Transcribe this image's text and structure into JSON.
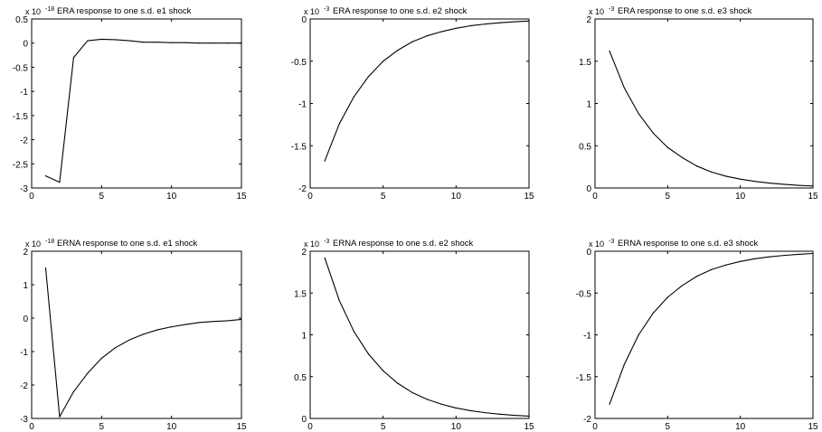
{
  "figure": {
    "background": "#ffffff",
    "line_color": "#000000"
  },
  "chart_data": [
    {
      "type": "line",
      "title": "ERA response to one  s.d. e1 shock",
      "scale_base": "x 10",
      "scale_exponent": "-18",
      "xlim": [
        0,
        15
      ],
      "ylim": [
        -3,
        0.5
      ],
      "xticks": [
        0,
        5,
        10,
        15
      ],
      "yticks": [
        -3,
        -2.5,
        -2,
        -1.5,
        -1,
        -0.5,
        0,
        0.5
      ],
      "x": [
        1,
        2,
        3,
        4,
        5,
        6,
        7,
        8,
        9,
        10,
        11,
        12,
        13,
        14,
        15
      ],
      "series": [
        {
          "values": [
            -2.75,
            -2.88,
            -0.3,
            0.05,
            0.08,
            0.07,
            0.05,
            0.02,
            0.02,
            0.01,
            0.01,
            0.0,
            0.0,
            0.0,
            0.0
          ]
        }
      ]
    },
    {
      "type": "line",
      "title": "ERA response to one  s.d. e2 shock",
      "scale_base": "x 10",
      "scale_exponent": "-3",
      "xlim": [
        0,
        15
      ],
      "ylim": [
        -2,
        0
      ],
      "xticks": [
        0,
        5,
        10,
        15
      ],
      "yticks": [
        -2,
        -1.5,
        -1,
        -0.5,
        0
      ],
      "x": [
        1,
        2,
        3,
        4,
        5,
        6,
        7,
        8,
        9,
        10,
        11,
        12,
        13,
        14,
        15
      ],
      "series": [
        {
          "values": [
            -1.68,
            -1.24,
            -0.92,
            -0.68,
            -0.5,
            -0.37,
            -0.27,
            -0.2,
            -0.15,
            -0.11,
            -0.08,
            -0.06,
            -0.045,
            -0.033,
            -0.025
          ]
        }
      ]
    },
    {
      "type": "line",
      "title": "ERA response to one  s.d. e3 shock",
      "scale_base": "x 10",
      "scale_exponent": "-3",
      "xlim": [
        0,
        15
      ],
      "ylim": [
        0,
        2
      ],
      "xticks": [
        0,
        5,
        10,
        15
      ],
      "yticks": [
        0,
        0.5,
        1,
        1.5,
        2
      ],
      "x": [
        1,
        2,
        3,
        4,
        5,
        6,
        7,
        8,
        9,
        10,
        11,
        12,
        13,
        14,
        15
      ],
      "series": [
        {
          "values": [
            1.62,
            1.19,
            0.88,
            0.65,
            0.48,
            0.36,
            0.26,
            0.19,
            0.14,
            0.105,
            0.078,
            0.058,
            0.043,
            0.031,
            0.023
          ]
        }
      ]
    },
    {
      "type": "line",
      "title": "ERNA response to one s.d. e1 shock",
      "scale_base": "x 10",
      "scale_exponent": "-18",
      "xlim": [
        0,
        15
      ],
      "ylim": [
        -3,
        2
      ],
      "xticks": [
        0,
        5,
        10,
        15
      ],
      "yticks": [
        -3,
        -2,
        -1,
        0,
        1,
        2
      ],
      "x": [
        1,
        2,
        3,
        4,
        5,
        6,
        7,
        8,
        9,
        10,
        11,
        12,
        13,
        14,
        15
      ],
      "series": [
        {
          "values": [
            1.5,
            -2.95,
            -2.2,
            -1.65,
            -1.2,
            -0.88,
            -0.65,
            -0.48,
            -0.35,
            -0.26,
            -0.19,
            -0.13,
            -0.1,
            -0.08,
            -0.04
          ]
        }
      ]
    },
    {
      "type": "line",
      "title": "ERNA response to one s.d. e2 shock",
      "scale_base": "x 10",
      "scale_exponent": "-3",
      "xlim": [
        0,
        15
      ],
      "ylim": [
        0,
        2
      ],
      "xticks": [
        0,
        5,
        10,
        15
      ],
      "yticks": [
        0,
        0.5,
        1,
        1.5,
        2
      ],
      "x": [
        1,
        2,
        3,
        4,
        5,
        6,
        7,
        8,
        9,
        10,
        11,
        12,
        13,
        14,
        15
      ],
      "series": [
        {
          "values": [
            1.92,
            1.41,
            1.04,
            0.77,
            0.57,
            0.42,
            0.31,
            0.23,
            0.17,
            0.125,
            0.093,
            0.069,
            0.051,
            0.037,
            0.028
          ]
        }
      ]
    },
    {
      "type": "line",
      "title": "ERNA response to one s.d. e3 shock",
      "scale_base": "x 10",
      "scale_exponent": "-3",
      "xlim": [
        0,
        15
      ],
      "ylim": [
        -2,
        0
      ],
      "xticks": [
        0,
        5,
        10,
        15
      ],
      "yticks": [
        -2,
        -1.5,
        -1,
        -0.5,
        0
      ],
      "x": [
        1,
        2,
        3,
        4,
        5,
        6,
        7,
        8,
        9,
        10,
        11,
        12,
        13,
        14,
        15
      ],
      "series": [
        {
          "values": [
            -1.83,
            -1.36,
            -1.0,
            -0.74,
            -0.55,
            -0.41,
            -0.3,
            -0.22,
            -0.165,
            -0.122,
            -0.09,
            -0.067,
            -0.05,
            -0.037,
            -0.027
          ]
        }
      ]
    }
  ]
}
